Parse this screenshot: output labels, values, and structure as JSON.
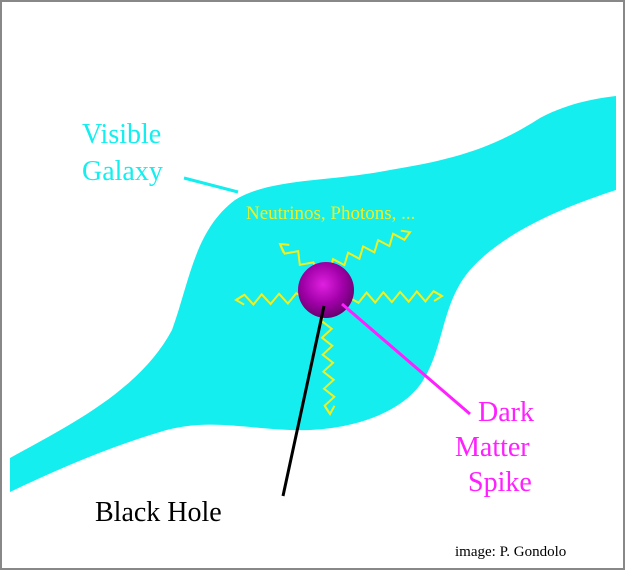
{
  "labels": {
    "visible_galaxy": [
      "Visible",
      "Galaxy"
    ],
    "emission": "Neutrinos, Photons, ...",
    "dark_matter_spike": [
      "Dark",
      "Matter",
      "Spike"
    ],
    "black_hole": "Black Hole",
    "credit": "image: P. Gondolo"
  }
}
